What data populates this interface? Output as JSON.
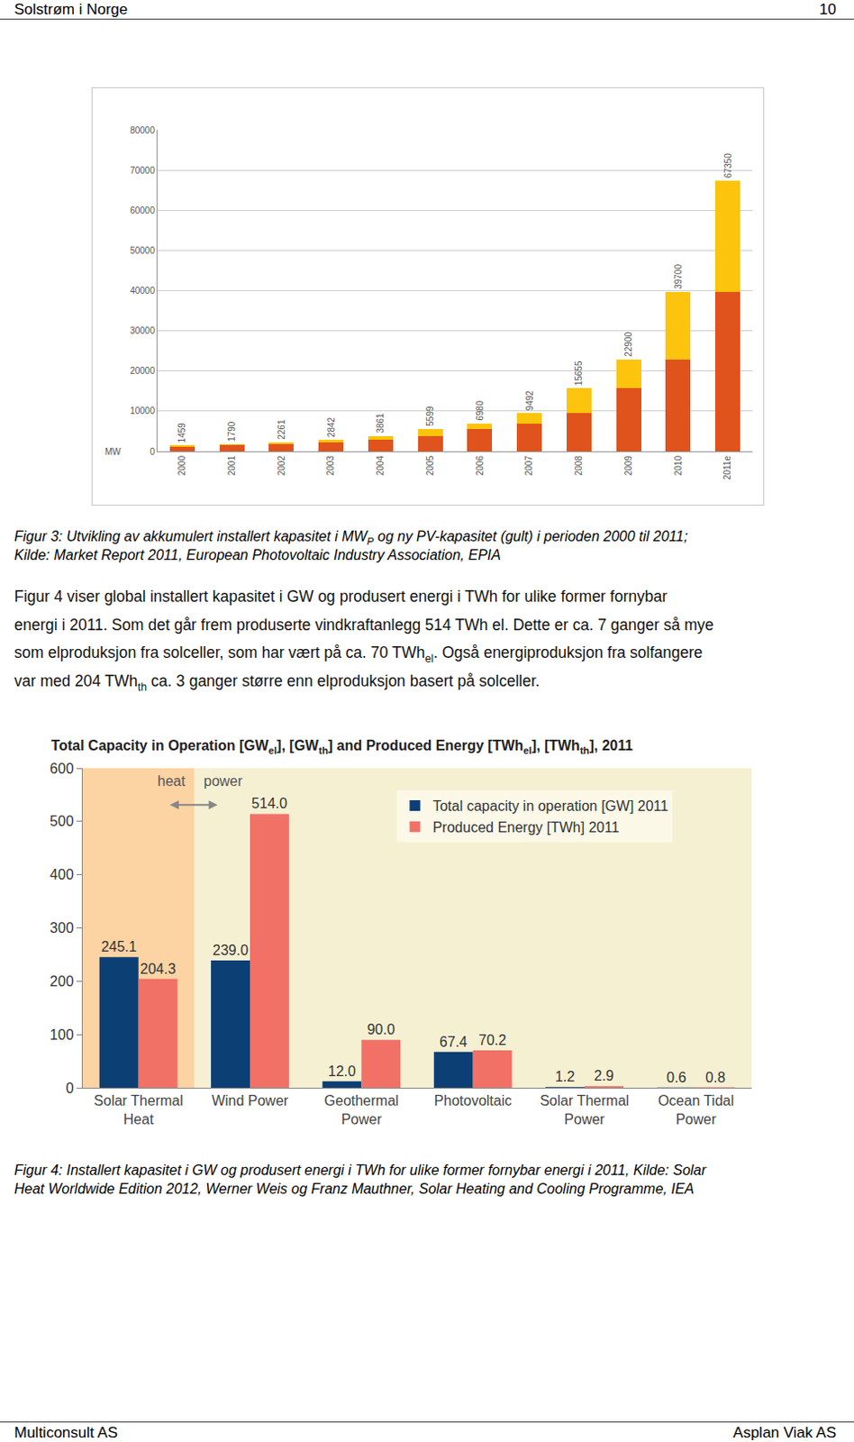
{
  "header": {
    "left": "Solstrøm i Norge",
    "right": "10"
  },
  "chart_data": [
    {
      "type": "bar",
      "stacked": true,
      "categories": [
        "2000",
        "2001",
        "2002",
        "2003",
        "2004",
        "2005",
        "2006",
        "2007",
        "2008",
        "2009",
        "2010",
        "2011e"
      ],
      "series": [
        {
          "name": "akkumulert",
          "color": "#e0531c",
          "values": [
            1150,
            1459,
            1790,
            2261,
            2842,
            3861,
            5599,
            6980,
            9492,
            15655,
            22900,
            39700
          ]
        },
        {
          "name": "ny",
          "color": "#fcc40c",
          "values": [
            309,
            331,
            471,
            581,
            1019,
            1738,
            1381,
            2512,
            6163,
            7245,
            16800,
            27650
          ]
        }
      ],
      "totals": [
        1459,
        1790,
        2261,
        2842,
        3861,
        5599,
        6980,
        9492,
        15655,
        22900,
        39700,
        67350
      ],
      "ylabel": "MW",
      "ylim": [
        0,
        80000
      ],
      "yticks": [
        0,
        10000,
        20000,
        30000,
        40000,
        50000,
        60000,
        70000,
        80000
      ],
      "grid": true
    },
    {
      "type": "bar",
      "title": [
        {
          "t": "Total Capacity in Operation [GW"
        },
        {
          "t": "el",
          "sub": true
        },
        {
          "t": "], [GW"
        },
        {
          "t": "th",
          "sub": true
        },
        {
          "t": "] and Produced Energy [TWh"
        },
        {
          "t": "el",
          "sub": true
        },
        {
          "t": "], [TWh"
        },
        {
          "t": "th",
          "sub": true
        },
        {
          "t": "], 2011"
        }
      ],
      "categories": [
        "Solar Thermal\nHeat",
        "Wind Power",
        "Geothermal\nPower",
        "Photovoltaic",
        "Solar Thermal\nPower",
        "Ocean Tidal\nPower"
      ],
      "series": [
        {
          "name": "Total capacity in operation [GW] 2011",
          "color": "#0c3f74",
          "values": [
            245.1,
            239.0,
            12.0,
            67.4,
            1.2,
            0.6
          ],
          "value_labels": [
            "245.1",
            "239.0",
            "12.0",
            "67.4",
            "1.2",
            "0.6"
          ]
        },
        {
          "name": "Produced Energy [TWh] 2011",
          "color": "#f17167",
          "values": [
            204.3,
            514.0,
            90.0,
            70.2,
            2.9,
            0.8
          ],
          "value_labels": [
            "204.3",
            "514.0",
            "90.0",
            "70.2",
            "2.9",
            "0.8"
          ]
        }
      ],
      "annotations": [
        "heat",
        "power"
      ],
      "data_labels": true,
      "legend": "upper center",
      "ylim": [
        0,
        600
      ],
      "yticks": [
        0,
        100,
        200,
        300,
        400,
        500,
        600
      ],
      "grid": false
    }
  ],
  "captions": [
    [
      [
        {
          "t": "Figur 3: Utvikling av akkumulert installert kapasitet i MW"
        },
        {
          "t": "P",
          "sub": true
        },
        {
          "t": " og ny PV-kapasitet (gult) i perioden 2000 til 2011;"
        }
      ],
      [
        {
          "t": "Kilde: Market Report 2011, European Photovoltaic Industry Association, EPIA"
        }
      ]
    ],
    [
      [
        {
          "t": "Figur 4: Installert kapasitet i GW og produsert energi i TWh for ulike former fornybar energi i 2011, Kilde: Solar"
        }
      ],
      [
        {
          "t": "Heat Worldwide Edition 2012, Werner Weis og Franz Mauthner, Solar Heating and Cooling Programme, IEA"
        }
      ]
    ]
  ],
  "paragraph": [
    [
      {
        "t": "Figur 4 viser global installert kapasitet i GW og produsert energi i TWh for ulike former fornybar"
      }
    ],
    [
      {
        "t": "energi i 2011. Som det går frem produserte vindkraftanlegg 514 TWh el. Dette er ca. 7 ganger så mye"
      }
    ],
    [
      {
        "t": "som elproduksjon fra solceller, som har vært på ca. 70 TWh"
      },
      {
        "t": "el",
        "sub": true
      },
      {
        "t": ". Også energiproduksjon fra solfangere"
      }
    ],
    [
      {
        "t": "var med 204 TWh"
      },
      {
        "t": "th",
        "sub": true
      },
      {
        "t": " ca. 3 ganger større enn elproduksjon basert på solceller."
      }
    ]
  ],
  "footer": {
    "left": "Multiconsult AS",
    "right": "Asplan Viak AS"
  }
}
